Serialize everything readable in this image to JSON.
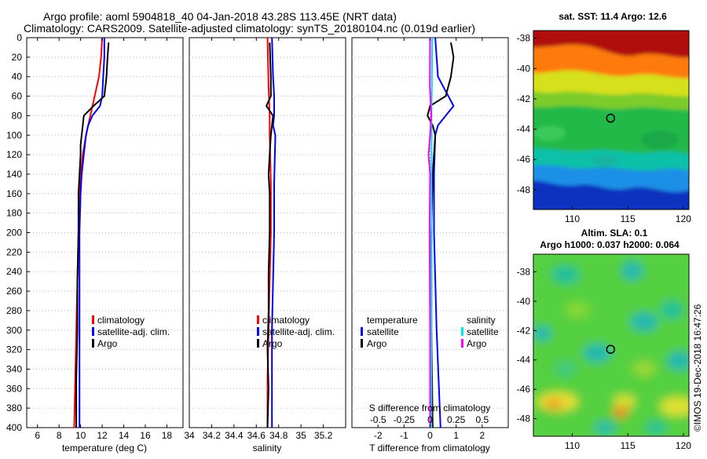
{
  "header": {
    "line1": "Argo profile: aoml 5904818_40 04-Jan-2018 43.28S 113.45E (NRT data)",
    "line2": "Climatology: CARS2009. Satellite-adjusted climatology: synTS_20180104.nc (0.019d earlier)"
  },
  "watermark": "©IMOS 19-Dec-2018 16:47:26",
  "colors": {
    "climatology": "#ff0000",
    "satellite": "#0000ff",
    "argo": "#000000",
    "sat_salinity": "#00e5e5",
    "argo_salinity": "#ff00ff"
  },
  "chart_data": [
    {
      "type": "line",
      "id": "temperature",
      "xlabel": "temperature (deg C)",
      "ylabel": "",
      "xlim": [
        5,
        19.5
      ],
      "ylim": [
        400,
        0
      ],
      "xticks": [
        6,
        8,
        10,
        12,
        14,
        16,
        18
      ],
      "yticks": [
        0,
        20,
        40,
        60,
        80,
        100,
        120,
        140,
        160,
        180,
        200,
        220,
        240,
        260,
        280,
        300,
        320,
        340,
        360,
        380,
        400
      ],
      "legend": [
        "climatology",
        "satellite-adj. clim.",
        "Argo"
      ],
      "series": [
        {
          "name": "climatology",
          "color": "#ff0000",
          "depth": [
            0,
            20,
            40,
            60,
            80,
            100,
            120,
            140,
            160,
            200,
            250,
            300,
            350,
            400
          ],
          "values": [
            12.0,
            11.9,
            11.7,
            11.3,
            10.9,
            10.5,
            10.2,
            10.0,
            9.9,
            9.8,
            9.7,
            9.6,
            9.5,
            9.4
          ]
        },
        {
          "name": "satellite-adj. clim.",
          "color": "#0000ff",
          "depth": [
            0,
            20,
            40,
            60,
            70,
            80,
            90,
            100,
            120,
            140,
            160,
            200,
            250,
            300,
            350,
            400
          ],
          "values": [
            12.2,
            12.2,
            12.1,
            12.0,
            11.8,
            11.1,
            10.7,
            10.5,
            10.3,
            10.1,
            10.0,
            9.9,
            9.9,
            9.9,
            9.9,
            9.9
          ]
        },
        {
          "name": "Argo",
          "color": "#000000",
          "depth": [
            5,
            20,
            40,
            50,
            60,
            70,
            80,
            90,
            100,
            110,
            120,
            140,
            160,
            200,
            250,
            300,
            350,
            400
          ],
          "values": [
            12.6,
            12.5,
            12.4,
            12.3,
            12.2,
            11.2,
            10.3,
            10.2,
            10.1,
            10.0,
            10.0,
            9.9,
            9.8,
            9.8,
            9.7,
            9.7,
            9.6,
            9.6
          ]
        }
      ]
    },
    {
      "type": "line",
      "id": "salinity",
      "xlabel": "salinity",
      "ylabel": "",
      "xlim": [
        34,
        35.4
      ],
      "ylim": [
        400,
        0
      ],
      "xticks": [
        34,
        34.2,
        34.4,
        34.6,
        34.8,
        35,
        35.2
      ],
      "yticks": [],
      "legend": [
        "climatology",
        "satellite-adj. clim.",
        "Argo"
      ],
      "series": [
        {
          "name": "climatology",
          "color": "#ff0000",
          "depth": [
            0,
            50,
            80,
            100,
            150,
            200,
            250,
            300,
            350,
            400
          ],
          "values": [
            34.7,
            34.71,
            34.72,
            34.72,
            34.73,
            34.73,
            34.72,
            34.71,
            34.7,
            34.7
          ]
        },
        {
          "name": "satellite-adj. clim.",
          "color": "#0000ff",
          "depth": [
            0,
            40,
            60,
            80,
            90,
            100,
            150,
            200,
            250,
            300,
            350,
            400
          ],
          "values": [
            34.74,
            34.75,
            34.76,
            34.76,
            34.75,
            34.77,
            34.76,
            34.76,
            34.75,
            34.74,
            34.74,
            34.74
          ]
        },
        {
          "name": "Argo",
          "color": "#000000",
          "depth": [
            5,
            40,
            60,
            70,
            80,
            90,
            100,
            120,
            140,
            160,
            200,
            240,
            280,
            320,
            360,
            400
          ],
          "values": [
            34.72,
            34.73,
            34.73,
            34.69,
            34.75,
            34.74,
            34.73,
            34.72,
            34.71,
            34.72,
            34.72,
            34.71,
            34.71,
            34.7,
            34.71,
            34.7
          ]
        }
      ]
    },
    {
      "type": "line",
      "id": "difference",
      "xlabel": "T difference from climatology",
      "xlabel2": "S difference from climatology",
      "xlim": [
        -3,
        3
      ],
      "ylim": [
        400,
        0
      ],
      "xticks": [
        -2,
        -1,
        0,
        1,
        2
      ],
      "s_ticks": [
        -0.5,
        -0.25,
        0,
        0.25,
        0.5
      ],
      "s_tick_labels": [
        "-0.5",
        "-0.25",
        "0",
        "0.25",
        "0.5"
      ],
      "legend_temperature": {
        "title": "temperature",
        "entries": [
          "satellite",
          "Argo"
        ]
      },
      "legend_salinity": {
        "title": "salinity",
        "entries": [
          "satellite",
          "Argo"
        ]
      },
      "series": [
        {
          "name": "T satellite",
          "color": "#0000ff",
          "depth": [
            0,
            40,
            60,
            70,
            80,
            90,
            100,
            140,
            200,
            300,
            400
          ],
          "values": [
            0.2,
            0.3,
            0.7,
            0.9,
            0.6,
            0.3,
            0.2,
            0.15,
            0.15,
            0.25,
            0.4
          ]
        },
        {
          "name": "T Argo",
          "color": "#000000",
          "depth": [
            5,
            20,
            40,
            60,
            70,
            80,
            90,
            100,
            140,
            200,
            300,
            400
          ],
          "values": [
            0.8,
            0.9,
            0.8,
            0.6,
            0.0,
            -0.1,
            0.1,
            0.2,
            0.1,
            0.05,
            0.05,
            0.1
          ]
        },
        {
          "name": "S satellite",
          "color": "#00e5e5",
          "depth": [
            0,
            50,
            80,
            100,
            150,
            200,
            300,
            400
          ],
          "values": [
            0.08,
            0.07,
            0.05,
            0.06,
            0.05,
            0.06,
            0.05,
            0.05
          ]
        },
        {
          "name": "S Argo",
          "color": "#ff00ff",
          "depth": [
            0,
            50,
            80,
            100,
            120,
            140,
            200,
            300,
            400
          ],
          "values": [
            0.0,
            -0.01,
            0.05,
            0.0,
            -0.06,
            0.0,
            -0.02,
            0.0,
            0.0
          ]
        }
      ]
    },
    {
      "type": "heatmap",
      "id": "sst-map",
      "title": "sat. SST: 11.4 Argo: 12.6",
      "xticks": [
        110,
        115,
        120
      ],
      "yticks": [
        -38,
        -40,
        -42,
        -44,
        -46,
        -48
      ],
      "xlim": [
        106.5,
        120.5
      ],
      "ylim": [
        -49.3,
        -37.5
      ],
      "marker": {
        "lon": 113.45,
        "lat": -43.28
      }
    },
    {
      "type": "heatmap",
      "id": "sla-map",
      "title": "Altim. SLA: 0.1",
      "subtitle": "Argo h1000: 0.037 h2000: 0.064",
      "xticks": [
        110,
        115,
        120
      ],
      "yticks": [
        -38,
        -40,
        -42,
        -44,
        -46,
        -48
      ],
      "xlim": [
        106.5,
        120.5
      ],
      "ylim": [
        -49.2,
        -36.8
      ],
      "marker": {
        "lon": 113.45,
        "lat": -43.28
      }
    }
  ]
}
